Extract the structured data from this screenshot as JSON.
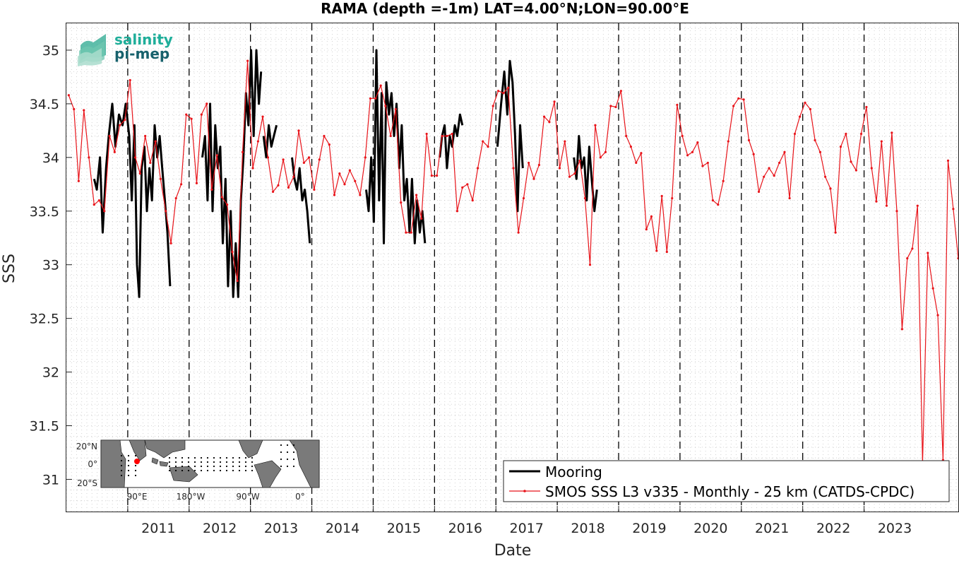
{
  "chart_data": {
    "type": "line",
    "title": "RAMA (depth =-1m) LAT=4.00°N;LON=90.00°E",
    "xlabel": "Date",
    "ylabel": "SSS",
    "xlim": [
      "2010-01-01",
      "2024-07-15"
    ],
    "ylim": [
      30.7,
      35.25
    ],
    "x_tick_labels": [
      "2011",
      "2012",
      "2013",
      "2014",
      "2015",
      "2016",
      "2017",
      "2018",
      "2019",
      "2020",
      "2021",
      "2022",
      "2023"
    ],
    "y_ticks": [
      31,
      31.5,
      32,
      32.5,
      33,
      33.5,
      34,
      34.5,
      35
    ],
    "y_tick_labels": [
      "31",
      "31.5",
      "32",
      "32.5",
      "33",
      "33.5",
      "34",
      "34.5",
      "35"
    ],
    "grid": "minor dotted",
    "year_markers": "dashed vertical lines at each Jan 1",
    "legend": {
      "position": "bottom-right",
      "entries": [
        "Mooring",
        "SMOS SSS L3 v335 - Monthly - 25 km (CATDS-CPDC)"
      ]
    },
    "colors": {
      "mooring": "#000000",
      "smos": "#e8141a"
    },
    "series": [
      {
        "name": "Mooring",
        "segments": [
          {
            "x": [
              "2010-06-15",
              "2010-07-01",
              "2010-07-20",
              "2010-08-05",
              "2010-08-25",
              "2010-09-10",
              "2010-10-01",
              "2010-10-20",
              "2010-11-10",
              "2010-12-01",
              "2010-12-20",
              "2011-01-10",
              "2011-01-25",
              "2011-02-10",
              "2011-02-25",
              "2011-03-10",
              "2011-03-25",
              "2011-04-10",
              "2011-04-25",
              "2011-05-10",
              "2011-05-25",
              "2011-06-10",
              "2011-06-25",
              "2011-07-10",
              "2011-07-25",
              "2011-08-10",
              "2011-08-25",
              "2011-09-10"
            ],
            "y": [
              33.8,
              33.7,
              34.0,
              33.3,
              33.9,
              34.2,
              34.5,
              34.1,
              34.4,
              34.3,
              34.5,
              34.2,
              33.6,
              34.3,
              33.0,
              32.7,
              33.9,
              34.1,
              33.5,
              33.9,
              33.6,
              34.3,
              34.0,
              34.2,
              33.9,
              33.6,
              33.3,
              32.8
            ]
          },
          {
            "x": [
              "2012-03-20",
              "2012-04-05",
              "2012-04-20",
              "2012-05-05",
              "2012-05-20",
              "2012-06-05",
              "2012-06-20",
              "2012-07-05",
              "2012-07-20",
              "2012-08-05",
              "2012-08-20",
              "2012-09-05",
              "2012-09-20",
              "2012-10-05",
              "2012-10-20",
              "2012-11-05",
              "2012-11-20",
              "2012-12-05",
              "2012-12-20",
              "2013-01-05",
              "2013-01-20",
              "2013-02-05",
              "2013-02-20",
              "2013-03-05"
            ],
            "y": [
              34.0,
              34.2,
              33.6,
              34.5,
              33.5,
              34.3,
              33.9,
              34.1,
              33.2,
              33.8,
              32.8,
              33.5,
              32.7,
              33.2,
              32.7,
              33.6,
              34.0,
              34.6,
              34.3,
              35.0,
              34.2,
              35.0,
              34.5,
              34.8
            ]
          },
          {
            "x": [
              "2013-03-20",
              "2013-04-05",
              "2013-04-20",
              "2013-05-05",
              "2013-05-20",
              "2013-06-05"
            ],
            "y": [
              34.2,
              34.0,
              34.3,
              34.1,
              34.2,
              34.3
            ]
          },
          {
            "x": [
              "2013-09-05",
              "2013-09-20",
              "2013-10-05",
              "2013-10-20",
              "2013-11-05",
              "2013-11-20",
              "2013-12-05",
              "2013-12-20"
            ],
            "y": [
              34.0,
              33.8,
              33.7,
              33.9,
              33.6,
              33.7,
              33.5,
              33.2
            ]
          },
          {
            "x": [
              "2014-11-20",
              "2014-12-05",
              "2014-12-20",
              "2015-01-05",
              "2015-01-20",
              "2015-02-05",
              "2015-02-20",
              "2015-03-05",
              "2015-03-20",
              "2015-04-05",
              "2015-04-20",
              "2015-05-05",
              "2015-05-20",
              "2015-06-05",
              "2015-06-20",
              "2015-07-05",
              "2015-07-20",
              "2015-08-05",
              "2015-08-20",
              "2015-09-05",
              "2015-09-20",
              "2015-10-05",
              "2015-10-20",
              "2015-11-05"
            ],
            "y": [
              33.7,
              33.5,
              34.0,
              33.4,
              35.0,
              33.6,
              34.6,
              33.2,
              34.7,
              34.4,
              34.6,
              34.2,
              34.5,
              33.9,
              34.3,
              33.6,
              33.8,
              33.3,
              33.8,
              33.2,
              33.6,
              33.3,
              33.5,
              33.2
            ]
          },
          {
            "x": [
              "2016-02-01",
              "2016-02-15",
              "2016-03-01",
              "2016-03-15",
              "2016-04-01",
              "2016-04-15",
              "2016-05-01",
              "2016-05-15",
              "2016-06-01",
              "2016-06-15"
            ],
            "y": [
              34.0,
              34.2,
              34.3,
              33.9,
              34.2,
              34.1,
              34.3,
              34.2,
              34.4,
              34.3
            ]
          },
          {
            "x": [
              "2017-01-10",
              "2017-02-01",
              "2017-02-20",
              "2017-03-10",
              "2017-03-25",
              "2017-04-10",
              "2017-04-25",
              "2017-05-10",
              "2017-05-25",
              "2017-06-10"
            ],
            "y": [
              34.1,
              34.5,
              34.8,
              34.4,
              34.9,
              34.7,
              34.2,
              33.5,
              34.3,
              33.9
            ]
          },
          {
            "x": [
              "2018-04-10",
              "2018-04-25",
              "2018-05-10",
              "2018-05-25",
              "2018-06-10",
              "2018-06-25",
              "2018-07-10",
              "2018-07-25",
              "2018-08-10",
              "2018-08-25"
            ],
            "y": [
              34.0,
              33.8,
              34.2,
              33.9,
              34.0,
              33.6,
              34.1,
              33.8,
              33.5,
              33.7
            ]
          }
        ]
      },
      {
        "name": "SMOS SSS L3 v335 - Monthly - 25 km (CATDS-CPDC)",
        "x": [
          "2010-01-15",
          "2010-02-15",
          "2010-03-15",
          "2010-04-15",
          "2010-05-15",
          "2010-06-15",
          "2010-07-15",
          "2010-08-15",
          "2010-09-15",
          "2010-10-15",
          "2010-11-15",
          "2010-12-15",
          "2011-01-15",
          "2011-02-15",
          "2011-03-15",
          "2011-04-15",
          "2011-05-15",
          "2011-06-15",
          "2011-07-15",
          "2011-08-15",
          "2011-09-15",
          "2011-10-15",
          "2011-11-15",
          "2011-12-15",
          "2012-01-15",
          "2012-02-15",
          "2012-03-15",
          "2012-04-15",
          "2012-05-15",
          "2012-06-15",
          "2012-07-15",
          "2012-08-15",
          "2012-09-15",
          "2012-10-15",
          "2012-11-15",
          "2012-12-15",
          "2013-01-15",
          "2013-02-15",
          "2013-03-15",
          "2013-04-15",
          "2013-05-15",
          "2013-06-15",
          "2013-07-15",
          "2013-08-15",
          "2013-09-15",
          "2013-10-15",
          "2013-11-15",
          "2013-12-15",
          "2014-01-15",
          "2014-02-15",
          "2014-03-15",
          "2014-04-15",
          "2014-05-15",
          "2014-06-15",
          "2014-07-15",
          "2014-08-15",
          "2014-09-15",
          "2014-10-15",
          "2014-11-15",
          "2014-12-15",
          "2015-01-15",
          "2015-02-15",
          "2015-03-15",
          "2015-04-15",
          "2015-05-15",
          "2015-06-15",
          "2015-07-15",
          "2015-08-15",
          "2015-09-15",
          "2015-10-15",
          "2015-11-15",
          "2015-12-15",
          "2016-01-15",
          "2016-02-15",
          "2016-03-15",
          "2016-04-15",
          "2016-05-15",
          "2016-06-15",
          "2016-07-15",
          "2016-08-15",
          "2016-09-15",
          "2016-10-15",
          "2016-11-15",
          "2016-12-15",
          "2017-01-15",
          "2017-02-15",
          "2017-03-15",
          "2017-04-15",
          "2017-05-15",
          "2017-06-15",
          "2017-07-15",
          "2017-08-15",
          "2017-09-15",
          "2017-10-15",
          "2017-11-15",
          "2017-12-15",
          "2018-01-15",
          "2018-02-15",
          "2018-03-15",
          "2018-04-15",
          "2018-05-15",
          "2018-06-15",
          "2018-07-15",
          "2018-08-15",
          "2018-09-15",
          "2018-10-15",
          "2018-11-15",
          "2018-12-15",
          "2019-01-15",
          "2019-02-15",
          "2019-03-15",
          "2019-04-15",
          "2019-05-15",
          "2019-06-15",
          "2019-07-15",
          "2019-08-15",
          "2019-09-15",
          "2019-10-15",
          "2019-11-15",
          "2019-12-15",
          "2020-01-15",
          "2020-02-15",
          "2020-03-15",
          "2020-04-15",
          "2020-05-15",
          "2020-06-15",
          "2020-07-15",
          "2020-08-15",
          "2020-09-15",
          "2020-10-15",
          "2020-11-15",
          "2020-12-15",
          "2021-01-15",
          "2021-02-15",
          "2021-03-15",
          "2021-04-15",
          "2021-05-15",
          "2021-06-15",
          "2021-07-15",
          "2021-08-15",
          "2021-09-15",
          "2021-10-15",
          "2021-11-15",
          "2021-12-15",
          "2022-01-15",
          "2022-02-15",
          "2022-03-15",
          "2022-04-15",
          "2022-05-15",
          "2022-06-15",
          "2022-07-15",
          "2022-08-15",
          "2022-09-15",
          "2022-10-15",
          "2022-11-15",
          "2022-12-15",
          "2023-01-15",
          "2023-02-15",
          "2023-03-15",
          "2023-04-15",
          "2023-05-15",
          "2023-06-15",
          "2023-07-15",
          "2023-08-15",
          "2023-09-15",
          "2023-10-15",
          "2023-11-15",
          "2023-12-15",
          "2024-01-15",
          "2024-02-15",
          "2024-03-15",
          "2024-04-15",
          "2024-05-15",
          "2024-06-15",
          "2024-07-15"
        ],
        "y": [
          34.58,
          34.45,
          33.78,
          34.44,
          34.0,
          33.56,
          33.6,
          33.5,
          34.2,
          34.05,
          34.3,
          34.35,
          34.72,
          34.0,
          33.85,
          34.2,
          33.95,
          34.15,
          33.8,
          33.5,
          33.2,
          33.62,
          33.75,
          34.4,
          34.36,
          33.76,
          34.4,
          34.5,
          33.7,
          34.02,
          33.63,
          33.56,
          33.12,
          32.85,
          34.05,
          34.9,
          33.9,
          34.15,
          34.38,
          34.0,
          33.68,
          33.74,
          33.98,
          33.72,
          33.82,
          34.25,
          33.95,
          34.0,
          33.7,
          33.98,
          34.2,
          34.12,
          33.65,
          33.85,
          33.75,
          33.88,
          33.78,
          33.65,
          34.0,
          34.55,
          34.55,
          34.67,
          34.48,
          34.2,
          34.45,
          33.58,
          33.3,
          33.3,
          33.65,
          33.43,
          34.22,
          33.83,
          33.83,
          34.2,
          34.2,
          34.22,
          33.5,
          33.72,
          33.75,
          33.6,
          33.9,
          34.15,
          34.1,
          34.48,
          34.62,
          34.6,
          34.65,
          33.9,
          33.3,
          33.62,
          33.95,
          33.8,
          33.93,
          34.38,
          34.33,
          34.52,
          33.9,
          34.15,
          33.82,
          33.85,
          33.97,
          33.62,
          33.0,
          34.3,
          34.0,
          34.05,
          34.48,
          34.47,
          34.62,
          34.2,
          34.1,
          33.95,
          34.04,
          33.33,
          33.45,
          33.13,
          33.64,
          33.12,
          33.62,
          34.49,
          34.2,
          34.02,
          34.05,
          34.14,
          33.92,
          33.95,
          33.6,
          33.56,
          33.78,
          34.15,
          34.48,
          34.55,
          34.54,
          34.16,
          34.03,
          33.68,
          33.82,
          33.9,
          33.83,
          33.95,
          34.05,
          33.62,
          34.22,
          34.38,
          34.51,
          34.45,
          34.16,
          34.05,
          33.82,
          33.71,
          33.3,
          34.1,
          34.22,
          33.96,
          33.88,
          34.22,
          34.47,
          33.9,
          33.59,
          34.15,
          33.55,
          34.23,
          33.5,
          32.4,
          33.06,
          33.15,
          33.55,
          31.15,
          33.11,
          32.78,
          32.53,
          31.18,
          33.97,
          33.52,
          33.06
        ]
      }
    ],
    "inset_map": {
      "lat_tick_labels": [
        "20°N",
        "0°",
        "20°S"
      ],
      "lon_tick_labels": [
        "90°E",
        "180°W",
        "90°W",
        "0°"
      ],
      "marker_color": "#ff0000"
    }
  },
  "logo": {
    "line1": "salinity",
    "line2": "pi-mep"
  }
}
